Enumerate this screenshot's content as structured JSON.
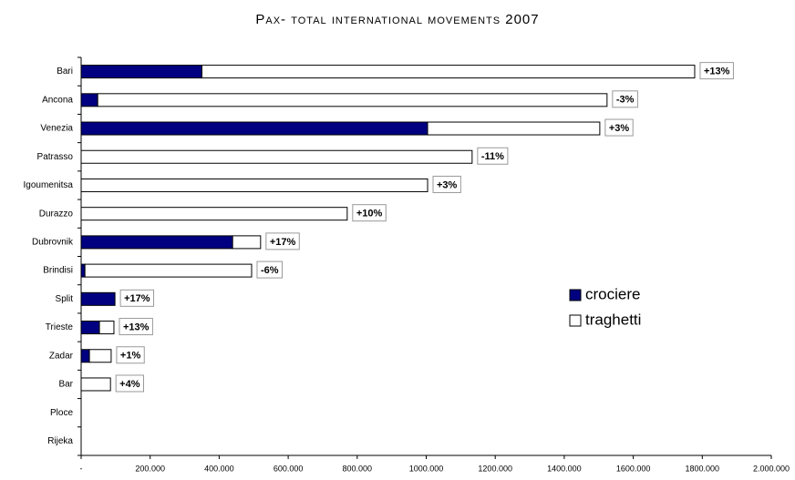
{
  "chart_data": {
    "type": "stacked-bar-horizontal",
    "title": "Pax- total international movements 2007",
    "categories": [
      "Bari",
      "Ancona",
      "Venezia",
      "Patrasso",
      "Igoumenitsa",
      "Durazzo",
      "Dubrovnik",
      "Brindisi",
      "Split",
      "Trieste",
      "Zadar",
      "Bar",
      "Ploce",
      "Rijeka"
    ],
    "series": [
      {
        "name": "crociere",
        "color": "#000080",
        "values": [
          350000,
          48000,
          1004000,
          0,
          0,
          0,
          439000,
          11000,
          98000,
          53000,
          24000,
          0,
          0,
          0
        ]
      },
      {
        "name": "traghetti",
        "color": "#ffffff",
        "values": [
          1428000,
          1476000,
          499000,
          1133000,
          1004000,
          771000,
          81000,
          483000,
          0,
          42000,
          63000,
          85000,
          0,
          0
        ]
      }
    ],
    "change_labels": [
      "+13%",
      "-3%",
      "+3%",
      "-11%",
      "+3%",
      "+10%",
      "+17%",
      "-6%",
      "+17%",
      "+13%",
      "+1%",
      "+4%",
      null,
      null
    ],
    "xlim": [
      0,
      2000000
    ],
    "xticks": [
      {
        "value": 0,
        "label": "-"
      },
      {
        "value": 200000,
        "label": "200.000"
      },
      {
        "value": 400000,
        "label": "400.000"
      },
      {
        "value": 600000,
        "label": "600.000"
      },
      {
        "value": 800000,
        "label": "800.000"
      },
      {
        "value": 1000000,
        "label": "1000.000"
      },
      {
        "value": 1200000,
        "label": "1200.000"
      },
      {
        "value": 1400000,
        "label": "1400.000"
      },
      {
        "value": 1600000,
        "label": "1600.000"
      },
      {
        "value": 1800000,
        "label": "1800.000"
      },
      {
        "value": 2000000,
        "label": "2.000.000"
      }
    ],
    "grid": false,
    "legend": "right"
  }
}
